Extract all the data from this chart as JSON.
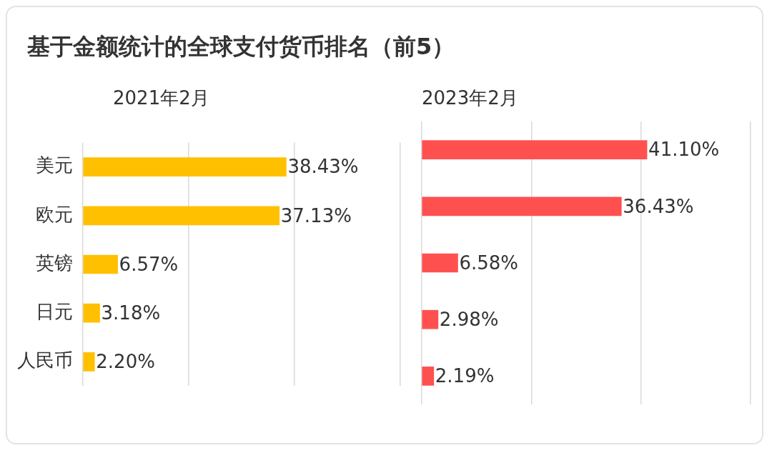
{
  "chart_data": [
    {
      "type": "bar",
      "orientation": "horizontal",
      "title": "基于金额统计的全球支付货币排名（前5）",
      "subtitle": "2021年2月",
      "categories": [
        "美元",
        "欧元",
        "英镑",
        "日元",
        "人民币"
      ],
      "values": [
        38.43,
        37.13,
        6.57,
        3.18,
        2.2
      ],
      "value_labels": [
        "38.43%",
        "37.13%",
        "6.57%",
        "3.18%",
        "2.20%"
      ],
      "color": "#ffc000",
      "xlim": [
        0,
        60
      ],
      "xticks": [
        {
          "value": 0,
          "label": null
        },
        {
          "value": 20,
          "label": null
        },
        {
          "value": 40,
          "label": null
        },
        {
          "value": 60,
          "label": null
        }
      ],
      "grid": "x",
      "tick_labels": "y",
      "legend": false
    },
    {
      "type": "bar",
      "orientation": "horizontal",
      "subtitle": "2023年2月",
      "categories": [
        null,
        null,
        null,
        null,
        null
      ],
      "values": [
        41.1,
        36.43,
        6.58,
        2.98,
        2.19
      ],
      "value_labels": [
        "41.10%",
        "36.43%",
        "6.58%",
        "2.98%",
        "2.19%"
      ],
      "color": "#ff5050",
      "xlim": [
        0,
        60
      ],
      "xticks": [
        {
          "value": 0,
          "label": null
        },
        {
          "value": 20,
          "label": null
        },
        {
          "value": 40,
          "label": null
        },
        {
          "value": 60,
          "label": null
        }
      ],
      "grid": "x",
      "tick_labels": false,
      "legend": false
    }
  ]
}
